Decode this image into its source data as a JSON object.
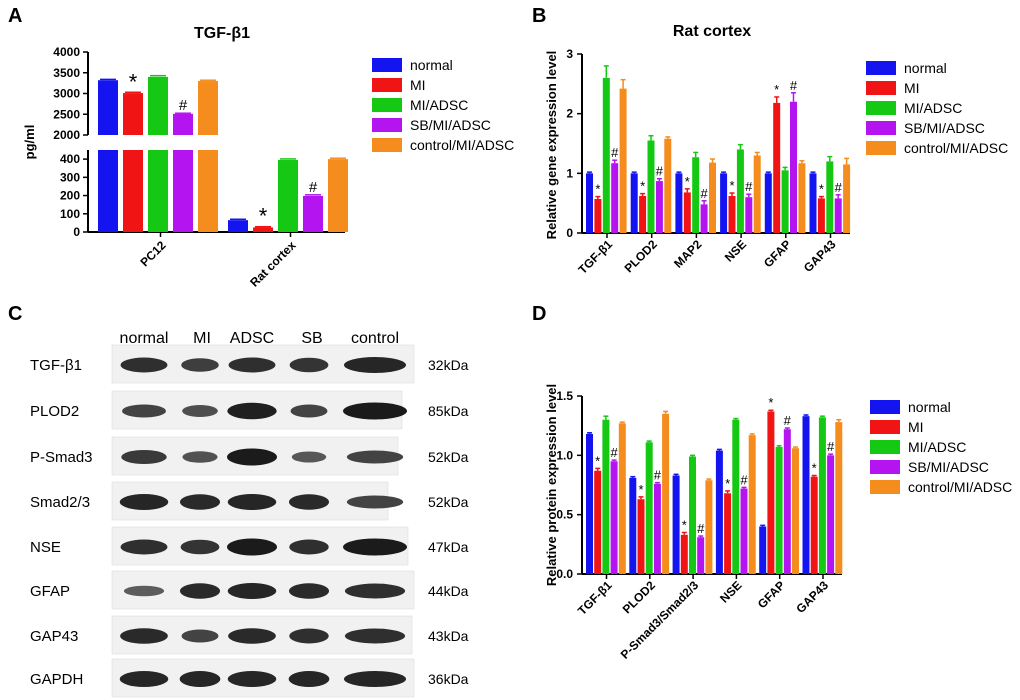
{
  "colors": {
    "normal": "#1414f0",
    "MI": "#f01414",
    "MI/ADSC": "#14c814",
    "SB/MI/ADSC": "#b414f0",
    "control/MI/ADSC": "#f58c1e",
    "axis": "#000000"
  },
  "panel_labels": {
    "a": "A",
    "b": "B",
    "c": "C",
    "d": "D"
  },
  "chart_data": [
    {
      "type": "bar",
      "panel": "A",
      "title": "TGF-β1",
      "xlabel": "",
      "ylabel": "pg/ml",
      "categories": [
        "PC12",
        "Rat cortex"
      ],
      "broken_axis": {
        "lower_range": [
          0,
          450
        ],
        "upper_range": [
          2000,
          4000
        ]
      },
      "yticks": [
        0,
        100,
        200,
        300,
        400,
        2000,
        2500,
        3000,
        3500,
        4000
      ],
      "legend": [
        "normal",
        "MI",
        "MI/ADSC",
        "SB/MI/ADSC",
        "control/MI/ADSC"
      ],
      "series": [
        {
          "name": "normal",
          "values": [
            3320,
            65
          ],
          "errors": [
            20,
            5
          ]
        },
        {
          "name": "MI",
          "values": [
            3010,
            25
          ],
          "errors": [
            20,
            4
          ]
        },
        {
          "name": "MI/ADSC",
          "values": [
            3400,
            395
          ],
          "errors": [
            30,
            6
          ]
        },
        {
          "name": "SB/MI/ADSC",
          "values": [
            2510,
            198
          ],
          "errors": [
            15,
            6
          ]
        },
        {
          "name": "control/MI/ADSC",
          "values": [
            3300,
            400
          ],
          "errors": [
            20,
            5
          ]
        }
      ],
      "annotations": [
        {
          "category": "PC12",
          "series": "MI",
          "text": "*"
        },
        {
          "category": "PC12",
          "series": "SB/MI/ADSC",
          "text": "#"
        },
        {
          "category": "Rat cortex",
          "series": "MI",
          "text": "*"
        },
        {
          "category": "Rat cortex",
          "series": "SB/MI/ADSC",
          "text": "#"
        }
      ]
    },
    {
      "type": "bar",
      "panel": "B",
      "title": "Rat cortex",
      "xlabel": "",
      "ylabel": "Relative gene expression level",
      "categories": [
        "TGF-β1",
        "PLOD2",
        "MAP2",
        "NSE",
        "GFAP",
        "GAP43"
      ],
      "ylim": [
        0,
        3
      ],
      "yticks": [
        0,
        1,
        2,
        3
      ],
      "legend": [
        "normal",
        "MI",
        "MI/ADSC",
        "SB/MI/ADSC",
        "control/MI/ADSC"
      ],
      "series": [
        {
          "name": "normal",
          "values": [
            1.0,
            1.0,
            1.0,
            1.0,
            1.0,
            1.0
          ],
          "errors": [
            0.02,
            0.02,
            0.02,
            0.02,
            0.02,
            0.02
          ]
        },
        {
          "name": "MI",
          "values": [
            0.57,
            0.62,
            0.68,
            0.62,
            2.18,
            0.58
          ],
          "errors": [
            0.04,
            0.04,
            0.06,
            0.05,
            0.1,
            0.03
          ]
        },
        {
          "name": "MI/ADSC",
          "values": [
            2.6,
            1.55,
            1.27,
            1.4,
            1.05,
            1.2
          ],
          "errors": [
            0.2,
            0.08,
            0.08,
            0.08,
            0.05,
            0.08
          ]
        },
        {
          "name": "SB/MI/ADSC",
          "values": [
            1.17,
            0.87,
            0.48,
            0.6,
            2.2,
            0.58
          ],
          "errors": [
            0.05,
            0.04,
            0.06,
            0.05,
            0.15,
            0.06
          ]
        },
        {
          "name": "control/MI/ADSC",
          "values": [
            2.42,
            1.58,
            1.18,
            1.3,
            1.17,
            1.15
          ],
          "errors": [
            0.15,
            0.03,
            0.06,
            0.05,
            0.04,
            0.1
          ]
        }
      ],
      "annotations": [
        {
          "category": "TGF-β1",
          "series": "MI",
          "text": "*"
        },
        {
          "category": "TGF-β1",
          "series": "SB/MI/ADSC",
          "text": "#"
        },
        {
          "category": "PLOD2",
          "series": "MI",
          "text": "*"
        },
        {
          "category": "PLOD2",
          "series": "SB/MI/ADSC",
          "text": "#"
        },
        {
          "category": "MAP2",
          "series": "MI",
          "text": "*"
        },
        {
          "category": "MAP2",
          "series": "SB/MI/ADSC",
          "text": "#"
        },
        {
          "category": "NSE",
          "series": "MI",
          "text": "*"
        },
        {
          "category": "NSE",
          "series": "SB/MI/ADSC",
          "text": "#"
        },
        {
          "category": "GFAP",
          "series": "MI",
          "text": "*"
        },
        {
          "category": "GFAP",
          "series": "SB/MI/ADSC",
          "text": "#"
        },
        {
          "category": "GAP43",
          "series": "MI",
          "text": "*"
        },
        {
          "category": "GAP43",
          "series": "SB/MI/ADSC",
          "text": "#"
        }
      ]
    },
    {
      "type": "bar",
      "panel": "D",
      "title": "",
      "xlabel": "",
      "ylabel": "Relative protein expression level",
      "categories": [
        "TGF-β1",
        "PLOD2",
        "P-Smad3/Smad2/3",
        "NSE",
        "GFAP",
        "GAP43"
      ],
      "ylim": [
        0,
        1.5
      ],
      "yticks": [
        0.0,
        0.5,
        1.0,
        1.5
      ],
      "ytick_labels": [
        "0.0",
        "0.5",
        "1.0",
        "1.5"
      ],
      "legend": [
        "normal",
        "MI",
        "MI/ADSC",
        "SB/MI/ADSC",
        "control/MI/ADSC"
      ],
      "series": [
        {
          "name": "normal",
          "values": [
            1.18,
            0.81,
            0.83,
            1.04,
            0.4,
            1.33
          ],
          "errors": [
            0.01,
            0.01,
            0.01,
            0.01,
            0.01,
            0.01
          ]
        },
        {
          "name": "MI",
          "values": [
            0.87,
            0.63,
            0.33,
            0.68,
            1.37,
            0.82
          ],
          "errors": [
            0.02,
            0.02,
            0.02,
            0.02,
            0.01,
            0.01
          ]
        },
        {
          "name": "MI/ADSC",
          "values": [
            1.3,
            1.11,
            0.99,
            1.3,
            1.07,
            1.32
          ],
          "errors": [
            0.03,
            0.01,
            0.01,
            0.01,
            0.01,
            0.01
          ]
        },
        {
          "name": "SB/MI/ADSC",
          "values": [
            0.95,
            0.76,
            0.31,
            0.72,
            1.22,
            1.0
          ],
          "errors": [
            0.01,
            0.01,
            0.01,
            0.01,
            0.01,
            0.01
          ]
        },
        {
          "name": "control/MI/ADSC",
          "values": [
            1.27,
            1.35,
            0.79,
            1.17,
            1.06,
            1.28
          ],
          "errors": [
            0.01,
            0.02,
            0.01,
            0.01,
            0.01,
            0.02
          ]
        }
      ],
      "annotations": [
        {
          "category": "TGF-β1",
          "series": "MI",
          "text": "*"
        },
        {
          "category": "TGF-β1",
          "series": "SB/MI/ADSC",
          "text": "#"
        },
        {
          "category": "PLOD2",
          "series": "MI",
          "text": "*"
        },
        {
          "category": "PLOD2",
          "series": "SB/MI/ADSC",
          "text": "#"
        },
        {
          "category": "P-Smad3/Smad2/3",
          "series": "MI",
          "text": "*"
        },
        {
          "category": "P-Smad3/Smad2/3",
          "series": "SB/MI/ADSC",
          "text": "#"
        },
        {
          "category": "NSE",
          "series": "MI",
          "text": "*"
        },
        {
          "category": "NSE",
          "series": "SB/MI/ADSC",
          "text": "#"
        },
        {
          "category": "GFAP",
          "series": "MI",
          "text": "*"
        },
        {
          "category": "GFAP",
          "series": "SB/MI/ADSC",
          "text": "#"
        },
        {
          "category": "GAP43",
          "series": "MI",
          "text": "*"
        },
        {
          "category": "GAP43",
          "series": "SB/MI/ADSC",
          "text": "#"
        }
      ]
    }
  ],
  "western_blot": {
    "lanes": [
      "normal",
      "MI",
      "ADSC",
      "SB",
      "control"
    ],
    "rows": [
      {
        "label": "TGF-β1",
        "size": "32kDa",
        "intensities": [
          0.8,
          0.65,
          0.8,
          0.75,
          0.9
        ]
      },
      {
        "label": "PLOD2",
        "size": "85kDa",
        "intensities": [
          0.6,
          0.5,
          0.95,
          0.6,
          1.0
        ]
      },
      {
        "label": "P-Smad3",
        "size": "52kDa",
        "intensities": [
          0.7,
          0.45,
          1.0,
          0.4,
          0.6
        ]
      },
      {
        "label": "Smad2/3",
        "size": "52kDa",
        "intensities": [
          0.9,
          0.85,
          0.9,
          0.85,
          0.6
        ]
      },
      {
        "label": "NSE",
        "size": "47kDa",
        "intensities": [
          0.8,
          0.75,
          1.0,
          0.8,
          1.0
        ]
      },
      {
        "label": "GFAP",
        "size": "44kDa",
        "intensities": [
          0.35,
          0.85,
          0.9,
          0.85,
          0.8
        ]
      },
      {
        "label": "GAP43",
        "size": "43kDa",
        "intensities": [
          0.85,
          0.6,
          0.85,
          0.8,
          0.8
        ]
      },
      {
        "label": "GAPDH",
        "size": "36kDa",
        "intensities": [
          0.9,
          0.9,
          0.9,
          0.9,
          0.9
        ]
      }
    ]
  }
}
